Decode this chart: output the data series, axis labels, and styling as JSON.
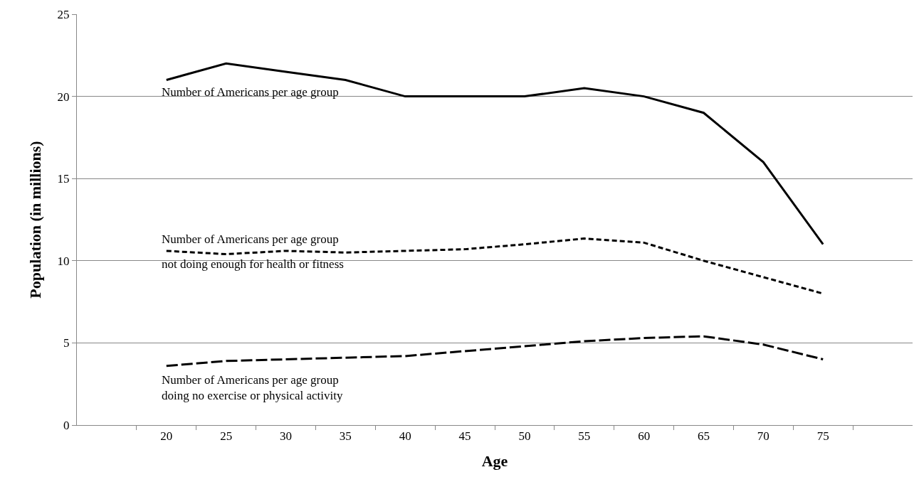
{
  "chart_data": {
    "type": "line",
    "xlabel": "Age",
    "ylabel": "Population (in millions)",
    "categories": [
      null,
      "20",
      "25",
      "30",
      "35",
      "40",
      "45",
      "50",
      "55",
      "60",
      "65",
      "70",
      "75",
      null
    ],
    "series": [
      {
        "name": "Number of Americans per age group",
        "color": "#000000",
        "line_style": "solid",
        "values": [
          null,
          21,
          22,
          21.5,
          21,
          20,
          20,
          20,
          20.5,
          20,
          19,
          16,
          11,
          null
        ]
      },
      {
        "name": "Number of Americans per age group not doing enough for health or fitness",
        "color": "#000000",
        "line_style": "dotted",
        "values": [
          null,
          10.6,
          10.4,
          10.6,
          10.5,
          10.6,
          10.7,
          11,
          11.35,
          11.1,
          10,
          9,
          8,
          null
        ]
      },
      {
        "name": "Number of Americans per age group doing no exercise or physical activity",
        "color": "#000000",
        "line_style": "dashed",
        "values": [
          null,
          3.6,
          3.9,
          4,
          4.1,
          4.2,
          4.5,
          4.8,
          5.1,
          5.3,
          5.4,
          4.9,
          4,
          null
        ]
      }
    ],
    "ylim": [
      0,
      25
    ],
    "yticks": [
      0,
      5,
      10,
      15,
      20,
      25
    ],
    "grid": "y",
    "legend": false,
    "marker": "none"
  }
}
